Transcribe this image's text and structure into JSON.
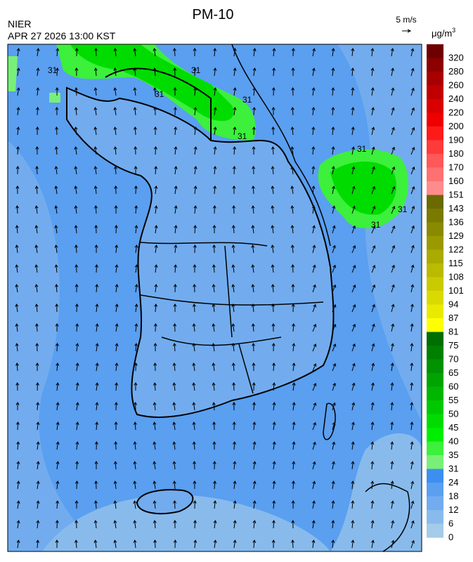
{
  "header": {
    "title": "PM-10",
    "agency": "NIER",
    "datetime": "APR 27 2026 13:00 KST",
    "wind_scale": "5 m/s",
    "unit": "μg/m",
    "unit_power": "3"
  },
  "map": {
    "contour_label": "31"
  },
  "colorbar": {
    "labels": [
      320,
      280,
      260,
      240,
      220,
      200,
      190,
      180,
      170,
      160,
      151,
      143,
      136,
      129,
      122,
      115,
      108,
      101,
      94,
      87,
      81,
      75,
      70,
      65,
      60,
      55,
      50,
      45,
      40,
      35,
      31,
      24,
      18,
      12,
      6,
      0
    ],
    "colors": [
      "#6e0000",
      "#8c0000",
      "#a80000",
      "#c00000",
      "#d80000",
      "#ee0000",
      "#ff1a1a",
      "#ff3a3a",
      "#ff5858",
      "#ff7070",
      "#ff8c8c",
      "#6a6a00",
      "#7a7a00",
      "#8a8a00",
      "#9a9a00",
      "#aaaa00",
      "#baba00",
      "#caca00",
      "#dada00",
      "#eaea00",
      "#ffff00",
      "#006e00",
      "#008000",
      "#009200",
      "#00a400",
      "#00b600",
      "#00c800",
      "#00dc00",
      "#00ee00",
      "#3cf03c",
      "#78f078",
      "#3c8ff0",
      "#5a9ff0",
      "#72acee",
      "#88bbec",
      "#a4cbe8"
    ]
  }
}
